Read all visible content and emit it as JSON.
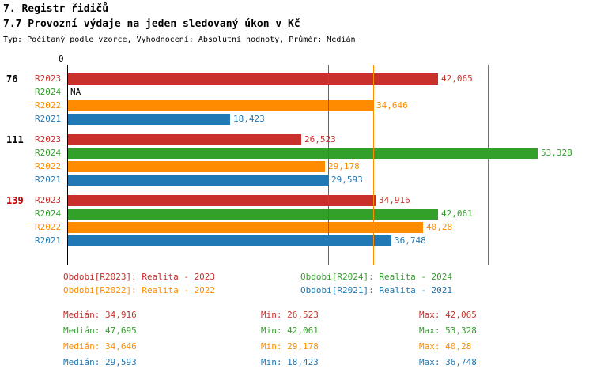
{
  "title1": "7. Registr řidičů",
  "title2": "7.7 Provozní výdaje na jeden sledovaný úkon v Kč",
  "subtitle": "Typ: Počítaný podle vzorce, Vyhodnocení: Absolutní hodnoty, Průměr: Medián",
  "colors": {
    "R2023": "#c9302c",
    "R2024": "#33a02c",
    "R2022": "#ff8c00",
    "R2021": "#2078b4",
    "group_highlight": "#c00000",
    "axis": "#000000"
  },
  "chart_data": {
    "type": "bar",
    "orientation": "horizontal",
    "unit": "Kč",
    "x_axis": {
      "origin_label": "0",
      "min": 0,
      "max_implied": 58.3,
      "grid": false
    },
    "series_order": [
      "R2023",
      "R2024",
      "R2022",
      "R2021"
    ],
    "groups": [
      {
        "label": "76",
        "highlighted": false,
        "bars": [
          {
            "series": "R2023",
            "value": 42.065,
            "label": "42,065"
          },
          {
            "series": "R2024",
            "value": null,
            "label": "NA"
          },
          {
            "series": "R2022",
            "value": 34.646,
            "label": "34,646"
          },
          {
            "series": "R2021",
            "value": 18.423,
            "label": "18,423"
          }
        ]
      },
      {
        "label": "111",
        "highlighted": false,
        "bars": [
          {
            "series": "R2023",
            "value": 26.523,
            "label": "26,523"
          },
          {
            "series": "R2024",
            "value": 53.328,
            "label": "53,328"
          },
          {
            "series": "R2022",
            "value": 29.178,
            "label": "29,178"
          },
          {
            "series": "R2021",
            "value": 29.593,
            "label": "29,593"
          }
        ]
      },
      {
        "label": "139",
        "highlighted": true,
        "bars": [
          {
            "series": "R2023",
            "value": 34.916,
            "label": "34,916"
          },
          {
            "series": "R2024",
            "value": 42.061,
            "label": "42,061"
          },
          {
            "series": "R2022",
            "value": 40.28,
            "label": "40,28"
          },
          {
            "series": "R2021",
            "value": 36.748,
            "label": "36,748"
          }
        ]
      }
    ],
    "median_lines": [
      {
        "series": "R2023",
        "value": 34.916
      },
      {
        "series": "R2024",
        "value": 47.695
      },
      {
        "series": "R2022",
        "value": 34.646
      },
      {
        "series": "R2021",
        "value": 29.593
      }
    ]
  },
  "legend": [
    {
      "series": "R2023",
      "label": "Období[R2023]: Realita - 2023",
      "col": 0,
      "row": 0
    },
    {
      "series": "R2024",
      "label": "Období[R2024]: Realita - 2024",
      "col": 1,
      "row": 0
    },
    {
      "series": "R2022",
      "label": "Období[R2022]: Realita - 2022",
      "col": 0,
      "row": 1
    },
    {
      "series": "R2021",
      "label": "Období[R2021]: Realita - 2021",
      "col": 1,
      "row": 1
    }
  ],
  "stats": [
    {
      "series": "R2023",
      "median": "Medián: 34,916",
      "min": "Min: 26,523",
      "max": "Max: 42,065"
    },
    {
      "series": "R2024",
      "median": "Medián: 47,695",
      "min": "Min: 42,061",
      "max": "Max: 53,328"
    },
    {
      "series": "R2022",
      "median": "Medián: 34,646",
      "min": "Min: 29,178",
      "max": "Max: 40,28"
    },
    {
      "series": "R2021",
      "median": "Medián: 29,593",
      "min": "Min: 18,423",
      "max": "Max: 36,748"
    }
  ]
}
